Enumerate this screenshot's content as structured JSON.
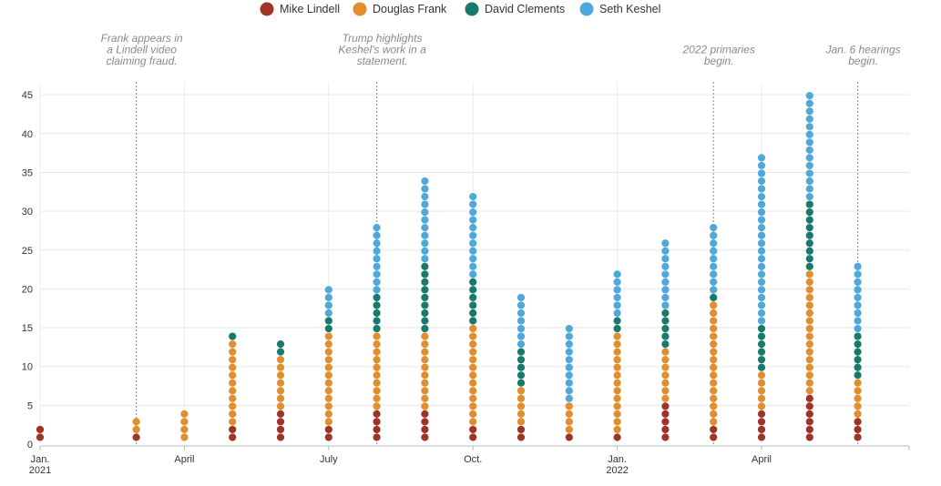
{
  "chart_data": {
    "type": "scatter",
    "title": "",
    "xlabel": "",
    "ylabel": "",
    "ylim": [
      0,
      47
    ],
    "grid": true,
    "legend_placement": "top-center",
    "y_ticks": [
      0,
      5,
      10,
      15,
      20,
      25,
      30,
      35,
      40,
      45
    ],
    "x_ticks": [
      {
        "month": 0,
        "label": "Jan.",
        "sublabel": "2021"
      },
      {
        "month": 3,
        "label": "April",
        "sublabel": ""
      },
      {
        "month": 6,
        "label": "July",
        "sublabel": ""
      },
      {
        "month": 9,
        "label": "Oct.",
        "sublabel": ""
      },
      {
        "month": 12,
        "label": "Jan.",
        "sublabel": "2022"
      },
      {
        "month": 15,
        "label": "April",
        "sublabel": ""
      }
    ],
    "series": [
      {
        "name": "Mike Lindell",
        "color": "#9e3326"
      },
      {
        "name": "Douglas Frank",
        "color": "#e08e2e"
      },
      {
        "name": "David Clements",
        "color": "#177a6c"
      },
      {
        "name": "Seth Keshel",
        "color": "#4ea9da"
      }
    ],
    "columns": [
      {
        "month": 0,
        "counts": [
          2,
          0,
          0,
          0
        ]
      },
      {
        "month": 2,
        "counts": [
          1,
          2,
          0,
          0
        ]
      },
      {
        "month": 3,
        "counts": [
          0,
          4,
          0,
          0
        ]
      },
      {
        "month": 4,
        "counts": [
          2,
          11,
          1,
          0
        ]
      },
      {
        "month": 5,
        "counts": [
          4,
          7,
          2,
          0
        ]
      },
      {
        "month": 6,
        "counts": [
          2,
          12,
          2,
          4
        ]
      },
      {
        "month": 7,
        "counts": [
          4,
          10,
          5,
          9
        ]
      },
      {
        "month": 8,
        "counts": [
          4,
          10,
          9,
          11
        ]
      },
      {
        "month": 9,
        "counts": [
          2,
          13,
          6,
          11
        ]
      },
      {
        "month": 10,
        "counts": [
          2,
          5,
          5,
          7
        ]
      },
      {
        "month": 11,
        "counts": [
          1,
          4,
          0,
          10
        ]
      },
      {
        "month": 12,
        "counts": [
          1,
          13,
          2,
          6
        ]
      },
      {
        "month": 13,
        "counts": [
          5,
          7,
          5,
          9
        ]
      },
      {
        "month": 14,
        "counts": [
          2,
          16,
          1,
          9
        ]
      },
      {
        "month": 15,
        "counts": [
          4,
          5,
          6,
          22
        ]
      },
      {
        "month": 16,
        "counts": [
          6,
          16,
          9,
          14
        ]
      },
      {
        "month": 17,
        "counts": [
          3,
          5,
          6,
          9
        ]
      }
    ],
    "annotations": [
      {
        "month": 2,
        "lines": [
          "Frank appears in",
          "a Lindell video",
          "claiming fraud."
        ]
      },
      {
        "month": 7,
        "lines": [
          "Trump highlights",
          "Keshel's work in a",
          "statement."
        ]
      },
      {
        "month": 14,
        "lines": [
          "2022 primaries",
          "begin."
        ]
      },
      {
        "month": 17,
        "lines": [
          "Jan. 6 hearings",
          "begin."
        ]
      }
    ]
  }
}
